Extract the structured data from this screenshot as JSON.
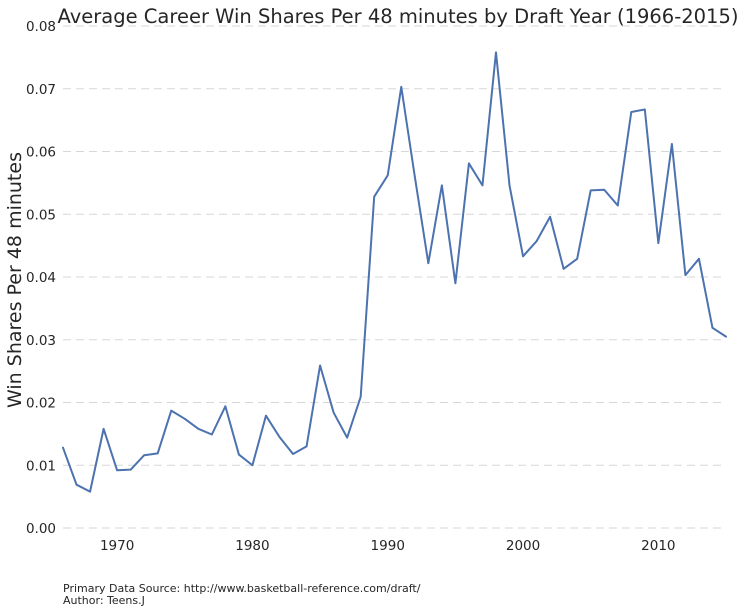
{
  "chart_data": {
    "type": "line",
    "title": "Average Career Win Shares Per 48 minutes by Draft Year (1966-2015)",
    "xlabel": "",
    "ylabel": "Win Shares Per 48 minutes",
    "xlim": [
      1966,
      2015
    ],
    "ylim": [
      0,
      0.08
    ],
    "x_ticks": [
      1970,
      1980,
      1990,
      2000,
      2010
    ],
    "y_ticks": [
      0.0,
      0.01,
      0.02,
      0.03,
      0.04,
      0.05,
      0.06,
      0.07,
      0.08
    ],
    "y_tick_labels": [
      "0.00",
      "0.01",
      "0.02",
      "0.03",
      "0.04",
      "0.05",
      "0.06",
      "0.07",
      "0.08"
    ],
    "grid": "horizontal dashed",
    "colors": {
      "line": "#4c72b0",
      "grid": "#d7d7d7",
      "text": "#262626"
    },
    "series": [
      {
        "x": [
          1966,
          1967,
          1968,
          1969,
          1970,
          1971,
          1972,
          1973,
          1974,
          1975,
          1976,
          1977,
          1978,
          1979,
          1980,
          1981,
          1982,
          1983,
          1984,
          1985,
          1986,
          1987,
          1988,
          1989,
          1990,
          1991,
          1992,
          1993,
          1994,
          1995,
          1996,
          1997,
          1998,
          1999,
          2000,
          2001,
          2002,
          2003,
          2004,
          2005,
          2006,
          2007,
          2008,
          2009,
          2010,
          2011,
          2012,
          2013,
          2014,
          2015
        ],
        "values": [
          0.0128,
          0.0069,
          0.0058,
          0.0158,
          0.0092,
          0.0093,
          0.0116,
          0.0119,
          0.0187,
          0.0174,
          0.0158,
          0.0149,
          0.0194,
          0.0117,
          0.01,
          0.0179,
          0.0145,
          0.0118,
          0.013,
          0.0259,
          0.0184,
          0.0144,
          0.0209,
          0.0528,
          0.0562,
          0.0703,
          0.056,
          0.0422,
          0.0546,
          0.039,
          0.0581,
          0.0546,
          0.0758,
          0.0546,
          0.0433,
          0.0457,
          0.0496,
          0.0413,
          0.0429,
          0.0538,
          0.0539,
          0.0514,
          0.0663,
          0.0667,
          0.0454,
          0.0612,
          0.0403,
          0.0429,
          0.0319,
          0.0305
        ]
      }
    ]
  },
  "footnote": {
    "source": "Primary Data Source: http://www.basketball-reference.com/draft/",
    "author": "Author: Teens.J"
  }
}
